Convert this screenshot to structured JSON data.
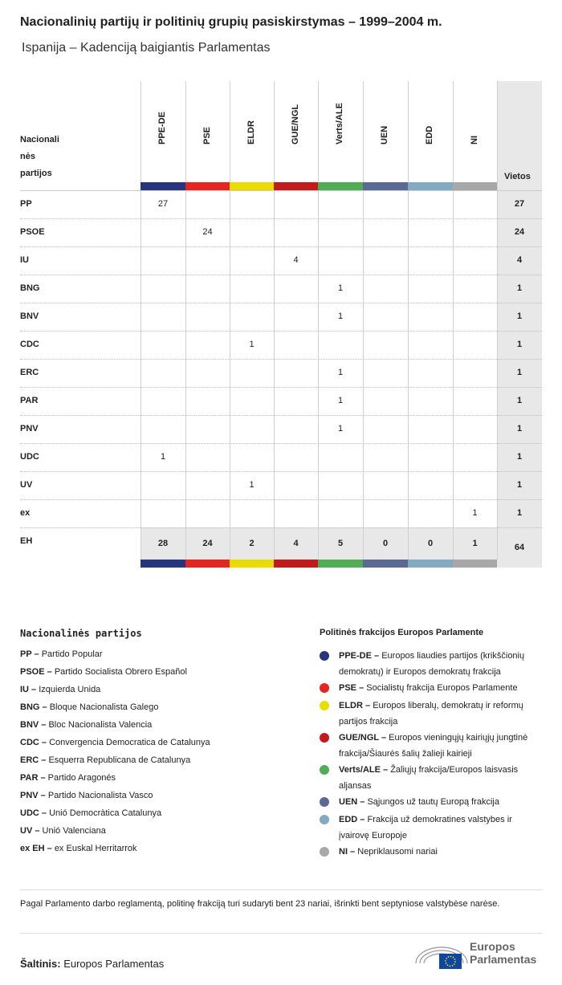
{
  "title": "Nacionalinių partijų ir politinių grupių pasiskirstymas – 1999–2004 m.",
  "subtitle": "Ispanija – Kadenciją baigiantis Parlamentas",
  "chart_data": {
    "type": "table",
    "row_header": "Nacionalinės partijos",
    "row_header_lines": [
      "Nacionali",
      "nės",
      "partijos"
    ],
    "total_header": "Vietos",
    "groups": [
      {
        "name": "PPE-DE",
        "color": "#27357e"
      },
      {
        "name": "PSE",
        "color": "#e42520"
      },
      {
        "name": "ELDR",
        "color": "#ebdc00"
      },
      {
        "name": "GUE/NGL",
        "color": "#c11b1d"
      },
      {
        "name": "Verts/ALE",
        "color": "#51ac56"
      },
      {
        "name": "UEN",
        "color": "#5a6a92"
      },
      {
        "name": "EDD",
        "color": "#82abc1"
      },
      {
        "name": "NI",
        "color": "#a8a8a8"
      }
    ],
    "rows": [
      {
        "party": "PP",
        "values": [
          27,
          null,
          null,
          null,
          null,
          null,
          null,
          null
        ],
        "total": 27
      },
      {
        "party": "PSOE",
        "values": [
          null,
          24,
          null,
          null,
          null,
          null,
          null,
          null
        ],
        "total": 24
      },
      {
        "party": "IU",
        "values": [
          null,
          null,
          null,
          4,
          null,
          null,
          null,
          null
        ],
        "total": 4
      },
      {
        "party": "BNG",
        "values": [
          null,
          null,
          null,
          null,
          1,
          null,
          null,
          null
        ],
        "total": 1
      },
      {
        "party": "BNV",
        "values": [
          null,
          null,
          null,
          null,
          1,
          null,
          null,
          null
        ],
        "total": 1
      },
      {
        "party": "CDC",
        "values": [
          null,
          null,
          1,
          null,
          null,
          null,
          null,
          null
        ],
        "total": 1
      },
      {
        "party": "ERC",
        "values": [
          null,
          null,
          null,
          null,
          1,
          null,
          null,
          null
        ],
        "total": 1
      },
      {
        "party": "PAR",
        "values": [
          null,
          null,
          null,
          null,
          1,
          null,
          null,
          null
        ],
        "total": 1
      },
      {
        "party": "PNV",
        "values": [
          null,
          null,
          null,
          null,
          1,
          null,
          null,
          null
        ],
        "total": 1
      },
      {
        "party": "UDC",
        "values": [
          1,
          null,
          null,
          null,
          null,
          null,
          null,
          null
        ],
        "total": 1
      },
      {
        "party": "UV",
        "values": [
          null,
          null,
          1,
          null,
          null,
          null,
          null,
          null
        ],
        "total": 1
      },
      {
        "party": "ex EH",
        "values": [
          null,
          null,
          null,
          null,
          null,
          null,
          null,
          1
        ],
        "total": 1
      }
    ],
    "column_totals": [
      28,
      24,
      2,
      4,
      5,
      0,
      0,
      1
    ],
    "grand_total": 64
  },
  "legend_parties": {
    "title": "Nacionalinės partijos",
    "items": [
      {
        "abbr": "PP –",
        "name": "Partido Popular"
      },
      {
        "abbr": "PSOE –",
        "name": "Partido Socialista Obrero Español"
      },
      {
        "abbr": "IU –",
        "name": "Izquierda Unida"
      },
      {
        "abbr": "BNG –",
        "name": "Bloque Nacionalista Galego"
      },
      {
        "abbr": "BNV –",
        "name": "Bloc Nacionalista Valencia"
      },
      {
        "abbr": "CDC –",
        "name": "Convergencia Democratica de Catalunya"
      },
      {
        "abbr": "ERC –",
        "name": "Esquerra Republicana de Catalunya"
      },
      {
        "abbr": "PAR –",
        "name": "Partido Aragonés"
      },
      {
        "abbr": "PNV –",
        "name": "Partido Nacionalista Vasco"
      },
      {
        "abbr": "UDC –",
        "name": "Unió Democràtica Catalunya"
      },
      {
        "abbr": "UV –",
        "name": "Unió Valenciana"
      },
      {
        "abbr": "ex EH –",
        "name": "ex Euskal Herritarrok"
      }
    ]
  },
  "legend_groups": {
    "title": "Politinės frakcijos Europos Parlamente",
    "items": [
      {
        "abbr": "PPE-DE –",
        "name": "Europos liaudies partijos (krikščionių demokratų) ir Europos demokratų frakcija"
      },
      {
        "abbr": "PSE –",
        "name": "Socialistų frakcija Europos Parlamente"
      },
      {
        "abbr": "ELDR –",
        "name": "Europos liberalų, demokratų ir reformų partijos frakcija"
      },
      {
        "abbr": "GUE/NGL –",
        "name": "Europos vieningųjų kairiųjų jungtinė frakcija/Šiaurės šalių žalieji kairieji"
      },
      {
        "abbr": "Verts/ALE –",
        "name": "Žaliųjų frakcija/Europos laisvasis aljansas"
      },
      {
        "abbr": "UEN –",
        "name": "Sąjungos už tautų Europą frakcija"
      },
      {
        "abbr": "EDD –",
        "name": "Frakcija už demokratines valstybes ir įvairovę Europoje"
      },
      {
        "abbr": "NI –",
        "name": "Nepriklausomi nariai"
      }
    ]
  },
  "note": "Pagal Parlamento darbo reglamentą, politinę frakciją turi sudaryti bent 23 nariai, išrinkti bent septyniose valstybėse narėse.",
  "source_label": "Šaltinis:",
  "source": "Europos Parlamentas",
  "logo": {
    "line1": "Europos",
    "line2": "Parlamentas"
  }
}
